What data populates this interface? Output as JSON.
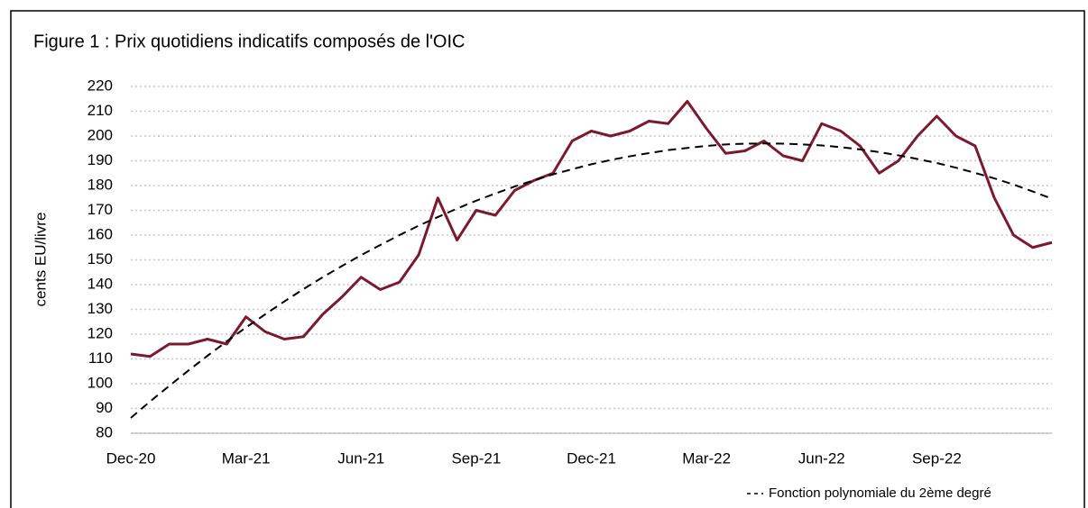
{
  "chart_data": {
    "type": "line",
    "title": "Figure 1 : Prix quotidiens indicatifs composés de l'OIC",
    "y_label": "cents EU/livre",
    "categories": [
      "Dec-20",
      null,
      null,
      null,
      null,
      null,
      "Mar-21",
      null,
      null,
      null,
      null,
      null,
      "Jun-21",
      null,
      null,
      null,
      null,
      null,
      "Sep-21",
      null,
      null,
      null,
      null,
      null,
      "Dec-21",
      null,
      null,
      null,
      null,
      null,
      "Mar-22",
      null,
      null,
      null,
      null,
      null,
      "Jun-22",
      null,
      null,
      null,
      null,
      null,
      "Sep-22",
      null,
      null,
      null,
      null,
      null,
      null
    ],
    "series": [
      {
        "color": "#7b1a2e",
        "dashed": false,
        "values": [
          112,
          111,
          116,
          116,
          118,
          116,
          127,
          121,
          118,
          119,
          128,
          135,
          143,
          138,
          141,
          152,
          175,
          158,
          170,
          168,
          178,
          182,
          185,
          198,
          202,
          200,
          202,
          206,
          205,
          214,
          203,
          193,
          194,
          198,
          192,
          190,
          205,
          202,
          196,
          185,
          190,
          200,
          208,
          200,
          196,
          175,
          160,
          155,
          157
        ]
      },
      {
        "name": "Fonction polynomiale du 2ème degré",
        "color": "#000000",
        "dashed": true,
        "values": [
          86.2,
          92.8,
          99.1,
          105.3,
          111.3,
          117.1,
          122.7,
          128.0,
          133.2,
          138.2,
          143.0,
          147.5,
          151.9,
          156.0,
          160.0,
          163.8,
          167.3,
          170.7,
          173.9,
          176.8,
          179.6,
          182.1,
          184.5,
          186.6,
          188.6,
          190.3,
          191.8,
          193.1,
          194.3,
          195.2,
          196.0,
          196.6,
          196.9,
          197.0,
          196.9,
          196.6,
          196.2,
          195.5,
          194.6,
          193.5,
          192.2,
          190.7,
          189.1,
          187.2,
          185.1,
          182.9,
          180.4,
          177.6,
          174.7
        ]
      }
    ],
    "ylim": [
      80,
      220
    ],
    "yticks": [
      80,
      90,
      100,
      110,
      120,
      130,
      140,
      150,
      160,
      170,
      180,
      190,
      200,
      210,
      220
    ],
    "grid": true
  }
}
